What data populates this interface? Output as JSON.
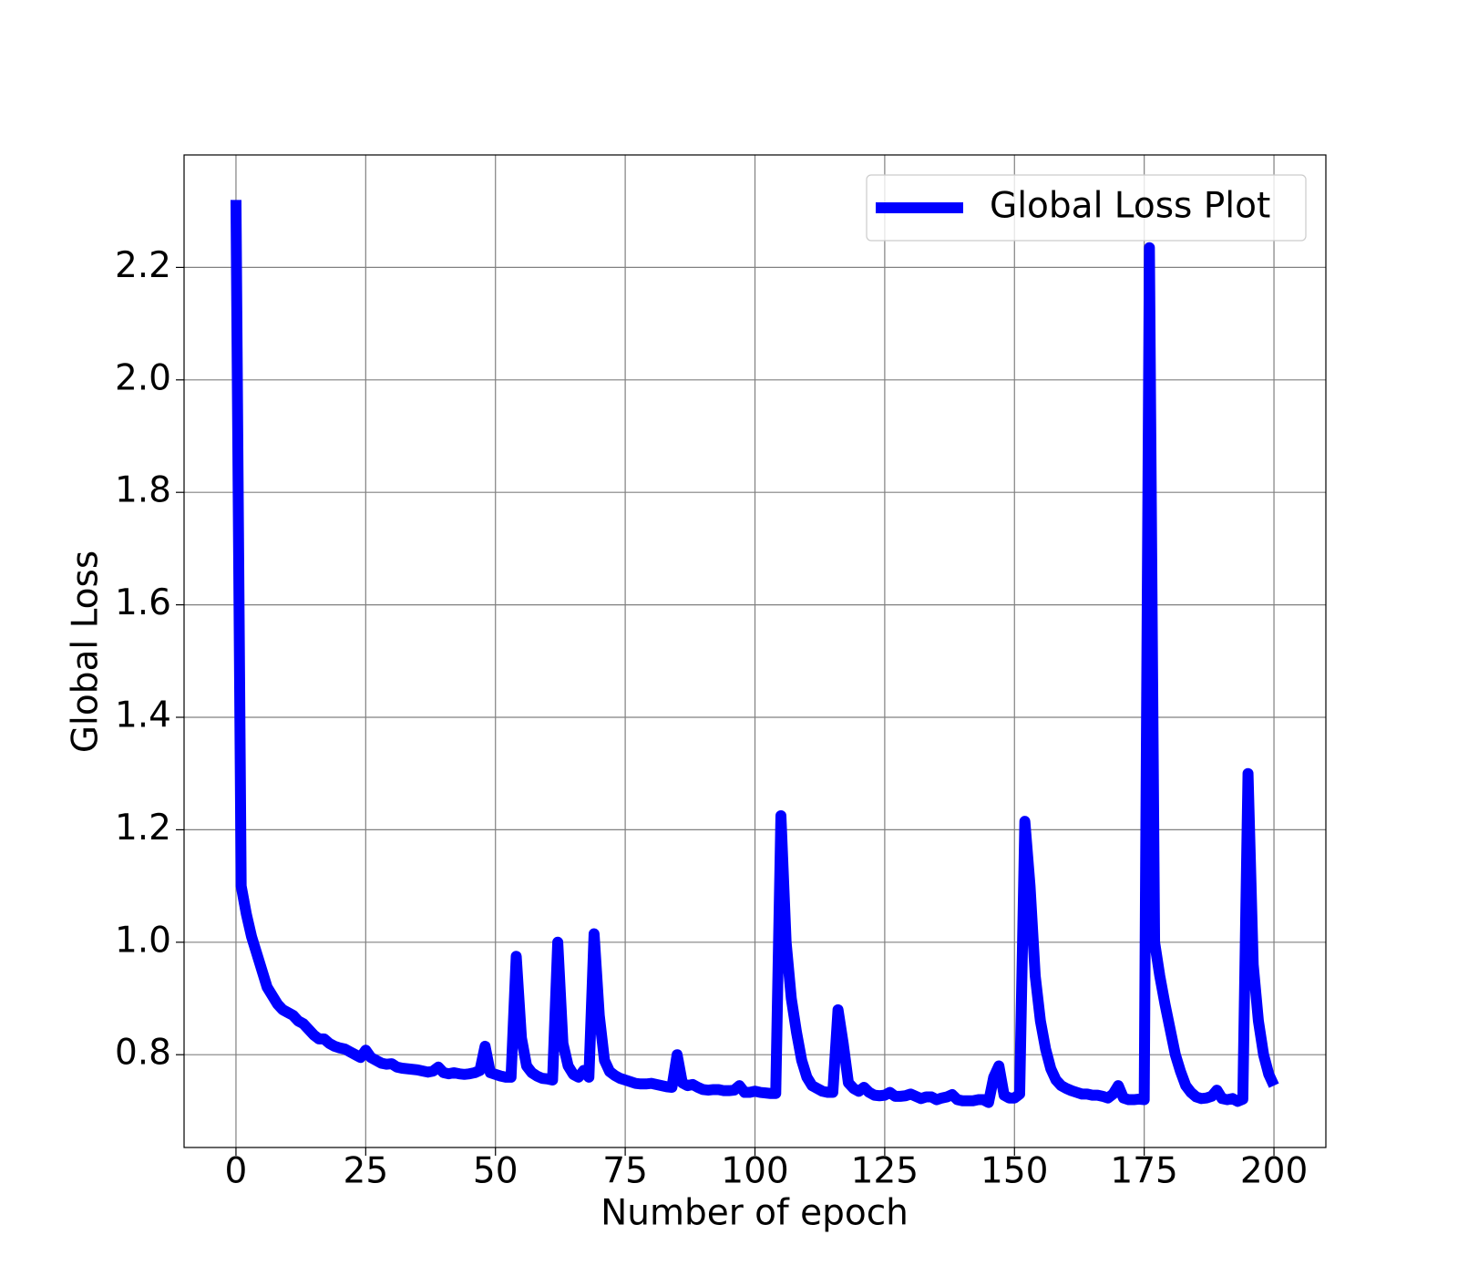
{
  "chart_data": {
    "type": "line",
    "xlabel": "Number of epoch",
    "ylabel": "Global Loss",
    "x": [
      0,
      1,
      2,
      3,
      4,
      5,
      6,
      7,
      8,
      9,
      10,
      11,
      12,
      13,
      14,
      15,
      16,
      17,
      18,
      19,
      20,
      21,
      22,
      23,
      24,
      25,
      26,
      27,
      28,
      29,
      30,
      31,
      32,
      33,
      34,
      35,
      36,
      37,
      38,
      39,
      40,
      41,
      42,
      43,
      44,
      45,
      46,
      47,
      48,
      49,
      50,
      51,
      52,
      53,
      54,
      55,
      56,
      57,
      58,
      59,
      60,
      61,
      62,
      63,
      64,
      65,
      66,
      67,
      68,
      69,
      70,
      71,
      72,
      73,
      74,
      75,
      76,
      77,
      78,
      79,
      80,
      81,
      82,
      83,
      84,
      85,
      86,
      87,
      88,
      89,
      90,
      91,
      92,
      93,
      94,
      95,
      96,
      97,
      98,
      99,
      100,
      101,
      102,
      103,
      104,
      105,
      106,
      107,
      108,
      109,
      110,
      111,
      112,
      113,
      114,
      115,
      116,
      117,
      118,
      119,
      120,
      121,
      122,
      123,
      124,
      125,
      126,
      127,
      128,
      129,
      130,
      131,
      132,
      133,
      134,
      135,
      136,
      137,
      138,
      139,
      140,
      141,
      142,
      143,
      144,
      145,
      146,
      147,
      148,
      149,
      150,
      151,
      152,
      153,
      154,
      155,
      156,
      157,
      158,
      159,
      160,
      161,
      162,
      163,
      164,
      165,
      166,
      167,
      168,
      169,
      170,
      171,
      172,
      173,
      174,
      175,
      176,
      177,
      178,
      179,
      180,
      181,
      182,
      183,
      184,
      185,
      186,
      187,
      188,
      189,
      190,
      191,
      192,
      193,
      194,
      195,
      196,
      197,
      198,
      199,
      200
    ],
    "series": [
      {
        "name": "Global Loss Plot",
        "color": "#0000ff",
        "values": [
          2.32,
          1.1,
          1.05,
          1.01,
          0.98,
          0.95,
          0.92,
          0.905,
          0.89,
          0.88,
          0.875,
          0.87,
          0.86,
          0.855,
          0.845,
          0.835,
          0.828,
          0.828,
          0.82,
          0.815,
          0.812,
          0.81,
          0.805,
          0.8,
          0.795,
          0.808,
          0.795,
          0.79,
          0.785,
          0.783,
          0.784,
          0.778,
          0.776,
          0.775,
          0.774,
          0.773,
          0.771,
          0.769,
          0.771,
          0.778,
          0.768,
          0.766,
          0.768,
          0.766,
          0.765,
          0.766,
          0.768,
          0.772,
          0.815,
          0.768,
          0.765,
          0.762,
          0.76,
          0.76,
          0.975,
          0.83,
          0.78,
          0.768,
          0.762,
          0.758,
          0.757,
          0.755,
          1.0,
          0.82,
          0.78,
          0.765,
          0.76,
          0.772,
          0.76,
          1.015,
          0.87,
          0.79,
          0.77,
          0.763,
          0.758,
          0.755,
          0.752,
          0.749,
          0.748,
          0.748,
          0.749,
          0.747,
          0.745,
          0.743,
          0.742,
          0.8,
          0.75,
          0.745,
          0.747,
          0.742,
          0.738,
          0.737,
          0.738,
          0.738,
          0.736,
          0.736,
          0.737,
          0.745,
          0.733,
          0.733,
          0.735,
          0.733,
          0.732,
          0.731,
          0.731,
          1.225,
          1.0,
          0.9,
          0.84,
          0.79,
          0.76,
          0.745,
          0.74,
          0.735,
          0.733,
          0.733,
          0.88,
          0.82,
          0.75,
          0.74,
          0.735,
          0.742,
          0.733,
          0.728,
          0.727,
          0.728,
          0.733,
          0.726,
          0.726,
          0.727,
          0.73,
          0.726,
          0.722,
          0.725,
          0.725,
          0.72,
          0.723,
          0.725,
          0.729,
          0.72,
          0.718,
          0.718,
          0.718,
          0.72,
          0.72,
          0.715,
          0.76,
          0.78,
          0.728,
          0.723,
          0.723,
          0.73,
          1.215,
          1.1,
          0.94,
          0.86,
          0.81,
          0.775,
          0.755,
          0.745,
          0.74,
          0.736,
          0.733,
          0.73,
          0.73,
          0.728,
          0.728,
          0.726,
          0.723,
          0.73,
          0.745,
          0.723,
          0.72,
          0.72,
          0.721,
          0.72,
          2.235,
          1.0,
          0.94,
          0.89,
          0.845,
          0.8,
          0.77,
          0.745,
          0.733,
          0.725,
          0.722,
          0.723,
          0.726,
          0.737,
          0.722,
          0.72,
          0.722,
          0.717,
          0.721,
          1.3,
          0.96,
          0.86,
          0.8,
          0.765,
          0.745
        ]
      }
    ],
    "xlim": [
      -10,
      210
    ],
    "ylim": [
      0.635,
      2.4
    ],
    "xticks": [
      0,
      25,
      50,
      75,
      100,
      125,
      150,
      175,
      200
    ],
    "yticks": [
      {
        "value": 0.8,
        "label": "0.8"
      },
      {
        "value": 1.0,
        "label": "1.0"
      },
      {
        "value": 1.2,
        "label": "1.2"
      },
      {
        "value": 1.4,
        "label": "1.4"
      },
      {
        "value": 1.6,
        "label": "1.6"
      },
      {
        "value": 1.8,
        "label": "1.8"
      },
      {
        "value": 2.0,
        "label": "2.0"
      },
      {
        "value": 2.2,
        "label": "2.2"
      }
    ],
    "grid": true,
    "legend": "upper right"
  }
}
